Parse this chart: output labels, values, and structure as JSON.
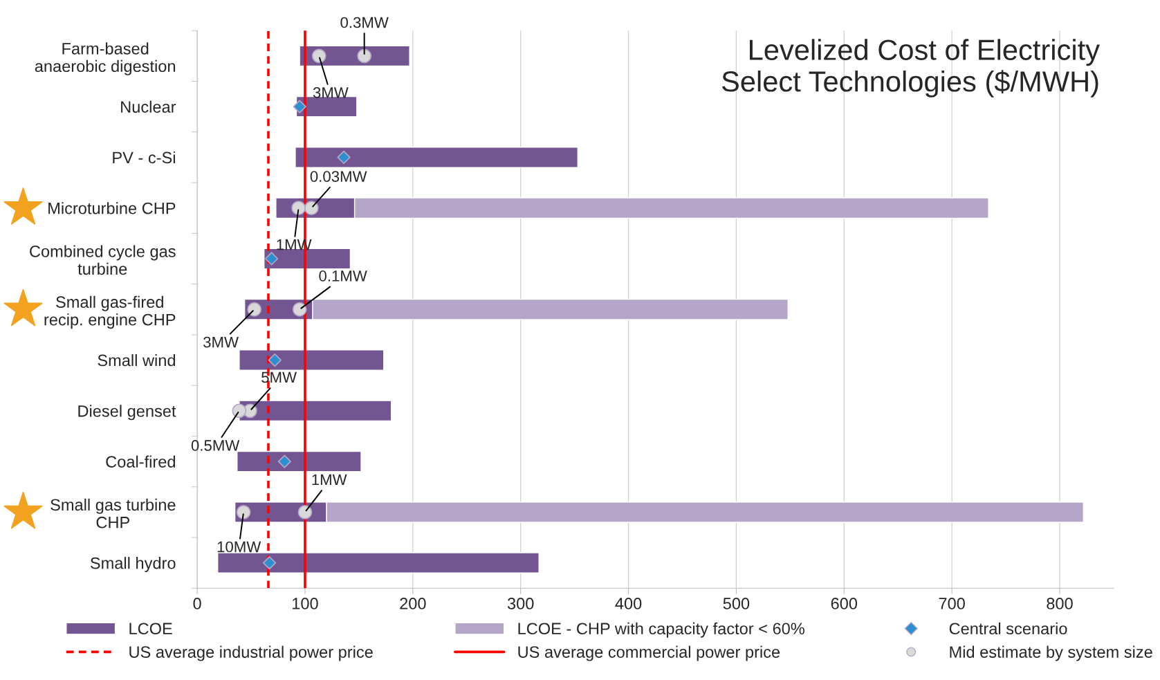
{
  "chart_data": {
    "type": "bar",
    "orientation": "horizontal",
    "title": "Levelized Cost of Electricity\nSelect Technologies ($/MWH)",
    "categories": [
      "Farm-based\nanaerobic digestion",
      "Nuclear",
      "PV - c-Si",
      "Microturbine CHP",
      "Combined cycle gas\nturbine",
      "Small gas-fired\nrecip. engine CHP",
      "Small wind",
      "Diesel genset",
      "Coal-fired",
      "Small gas turbine\nCHP",
      "Small hydro"
    ],
    "series": [
      {
        "name": "LCOE",
        "color": "#725591",
        "base": [
          95,
          92,
          91,
          73,
          62,
          44,
          39,
          39,
          37,
          35,
          19
        ],
        "values": [
          102,
          56,
          262,
          73,
          80,
          63,
          134,
          141,
          115,
          85,
          298
        ]
      },
      {
        "name": "LCOE - CHP with capacity factor < 60%",
        "color": "#b5a6c9",
        "base": [
          null,
          null,
          null,
          146,
          null,
          107,
          null,
          null,
          null,
          120,
          null
        ],
        "values": [
          null,
          null,
          null,
          588,
          null,
          441,
          null,
          null,
          null,
          702,
          null
        ]
      },
      {
        "name": "Central scenario",
        "type": "scatter",
        "marker": "diamond",
        "color": "#2e8fd0",
        "values": [
          null,
          95,
          136,
          null,
          69,
          null,
          72,
          null,
          81,
          null,
          67
        ]
      },
      {
        "name": "Mid estimate by system size",
        "type": "scatter",
        "marker": "circle",
        "color": "#d9d9d9",
        "values": [
          155,
          null,
          null,
          106,
          null,
          95,
          null,
          49,
          null,
          100,
          null
        ]
      },
      {
        "type": "scatter",
        "marker": "circle",
        "color": "#d9d9d9",
        "values": [
          113,
          null,
          null,
          94,
          null,
          53,
          null,
          39,
          null,
          43,
          null
        ]
      }
    ],
    "xlim": [
      0,
      850
    ],
    "xticks": [
      0,
      100,
      200,
      300,
      400,
      500,
      600,
      700,
      800
    ],
    "grid": "x",
    "legend": "bottom",
    "ref_lines": [
      {
        "axis": "x",
        "value": 66,
        "label": "US average industrial power price",
        "color": "#ff0000",
        "line_style": "dashed"
      },
      {
        "axis": "x",
        "value": 100,
        "label": "US average commercial power price",
        "color": "#ff0000",
        "line_style": "solid"
      }
    ],
    "annotations": [
      {
        "text": "0.3MW",
        "x": 155,
        "y": "Farm-based\nanaerobic digestion"
      },
      {
        "text": "3MW",
        "x": 113,
        "y": "Farm-based\nanaerobic digestion"
      },
      {
        "text": "0.03MW",
        "x": 106,
        "y": "Microturbine CHP"
      },
      {
        "text": "1MW",
        "x": 94,
        "y": "Microturbine CHP"
      },
      {
        "text": "0.1MW",
        "x": 95,
        "y": "Small gas-fired\nrecip. engine CHP"
      },
      {
        "text": "3MW",
        "x": 53,
        "y": "Small gas-fired\nrecip. engine CHP"
      },
      {
        "text": "5MW",
        "x": 49,
        "y": "Diesel genset"
      },
      {
        "text": "0.5MW",
        "x": 39,
        "y": "Diesel genset"
      },
      {
        "text": "1MW",
        "x": 100,
        "y": "Small gas turbine\nCHP"
      },
      {
        "text": "10MW",
        "x": 43,
        "y": "Small gas turbine\nCHP"
      }
    ]
  }
}
